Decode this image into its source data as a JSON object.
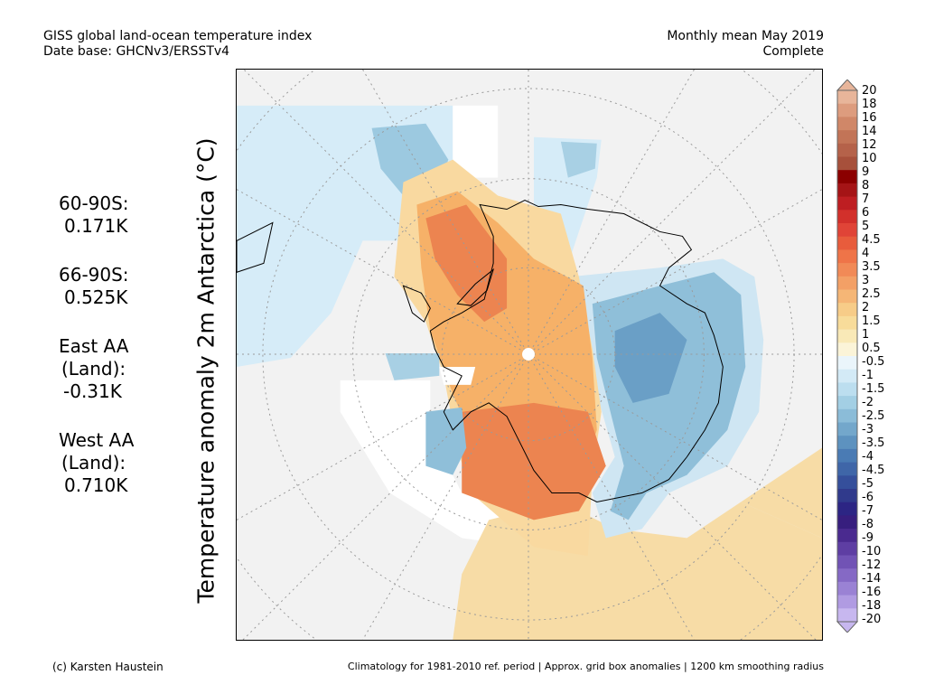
{
  "header": {
    "title": "GISS global land-ocean temperature index",
    "database": "Date base: GHCNv3/ERSSTv4",
    "period": "Monthly mean May 2019",
    "status": "Complete"
  },
  "map": {
    "ylabel": "Temperature anomaly 2m Antarctica (°C)",
    "projection": "south polar stereographic",
    "colors": {
      "background": "#f2f2f2",
      "missing": "#ffffff",
      "grid": "#9a9a9a",
      "coast": "#000000"
    }
  },
  "stats": [
    {
      "label": "60-90S:",
      "value": "0.171K"
    },
    {
      "label": "66-90S:",
      "value": "0.525K"
    },
    {
      "label": "East AA",
      "label2": "(Land):",
      "value": "-0.31K"
    },
    {
      "label": "West AA",
      "label2": "(Land):",
      "value": "0.710K"
    }
  ],
  "colorbar": {
    "labels": [
      "20",
      "18",
      "16",
      "14",
      "12",
      "10",
      "9",
      "8",
      "7",
      "6",
      "5",
      "4.5",
      "4",
      "3.5",
      "3",
      "2.5",
      "2",
      "1.5",
      "1",
      "0.5",
      "-0.5",
      "-1",
      "-1.5",
      "-2",
      "-2.5",
      "-3",
      "-3.5",
      "-4",
      "-4.5",
      "-5",
      "-6",
      "-7",
      "-8",
      "-9",
      "-10",
      "-12",
      "-14",
      "-16",
      "-18",
      "-20"
    ],
    "colors": [
      "#e8b59a",
      "#dd9c7e",
      "#d08768",
      "#c27457",
      "#b5624a",
      "#a7503b",
      "#8b0000",
      "#a51416",
      "#be1e22",
      "#d2302b",
      "#e04437",
      "#e85c3c",
      "#ef7448",
      "#f18a57",
      "#f3a066",
      "#f5b676",
      "#f7cc88",
      "#f8dc9a",
      "#f9e9b7",
      "#fbf4d8",
      "#eaf5fb",
      "#d3eaf6",
      "#bcdeef",
      "#a3cfe4",
      "#8bbcd8",
      "#73a7cb",
      "#5d92bf",
      "#4a7bb4",
      "#3f66a8",
      "#354f9b",
      "#303a8c",
      "#2c2584",
      "#371e7e",
      "#4a2a8f",
      "#5e3ea3",
      "#7153b5",
      "#8569c5",
      "#9a82d4",
      "#b09be2",
      "#c7b7ef"
    ]
  },
  "footer": {
    "credit": "(c) Karsten Haustein",
    "note": "Climatology for 1981-2010 ref. period | Approx. grid box anomalies | 1200 km smoothing radius"
  }
}
